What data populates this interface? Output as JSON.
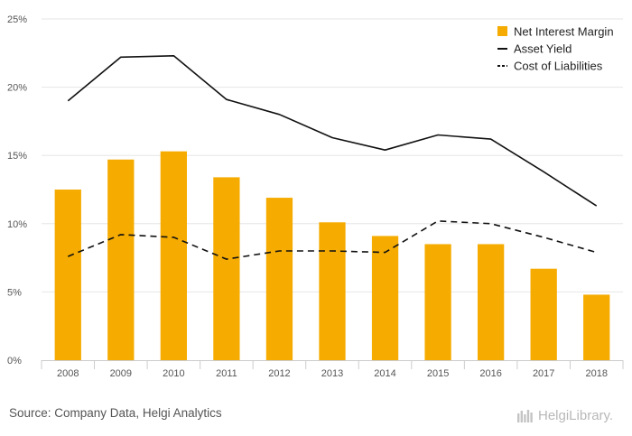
{
  "chart_data": {
    "type": "bar",
    "categories": [
      "2008",
      "2009",
      "2010",
      "2011",
      "2012",
      "2013",
      "2014",
      "2015",
      "2016",
      "2017",
      "2018"
    ],
    "series": [
      {
        "name": "Net Interest Margin",
        "type": "bar",
        "color": "#f5ab00",
        "values": [
          12.5,
          14.7,
          15.3,
          13.4,
          11.9,
          10.1,
          9.1,
          8.5,
          8.5,
          6.7,
          4.8
        ]
      },
      {
        "name": "Asset Yield",
        "type": "line",
        "style": "solid",
        "color": "#111111",
        "values": [
          19.0,
          22.2,
          22.3,
          19.1,
          18.0,
          16.3,
          15.4,
          16.5,
          16.2,
          13.8,
          11.3
        ]
      },
      {
        "name": "Cost of Liabilities",
        "type": "line",
        "style": "dashed",
        "color": "#111111",
        "values": [
          7.6,
          9.2,
          9.0,
          7.4,
          8.0,
          8.0,
          7.9,
          10.2,
          10.0,
          9.0,
          7.9
        ]
      }
    ],
    "yticks": [
      "0%",
      "5%",
      "10%",
      "15%",
      "20%",
      "25%"
    ],
    "ylim": [
      0,
      25
    ],
    "grid": true,
    "legend_position": "top-right"
  },
  "footer": {
    "source": "Source: Company Data, Helgi Analytics",
    "logo_text": "HelgiLibrary."
  }
}
